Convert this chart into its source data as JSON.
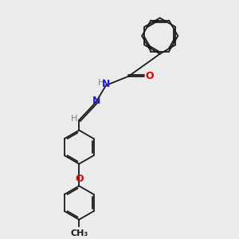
{
  "bg_color": "#ebebeb",
  "bond_color": "#1a1a1a",
  "bond_width": 1.3,
  "N_color": "#2020d0",
  "O_color": "#e00000",
  "H_color": "#808080",
  "figsize": [
    3.0,
    3.0
  ],
  "dpi": 100,
  "xlim": [
    0,
    10
  ],
  "ylim": [
    0,
    10
  ]
}
